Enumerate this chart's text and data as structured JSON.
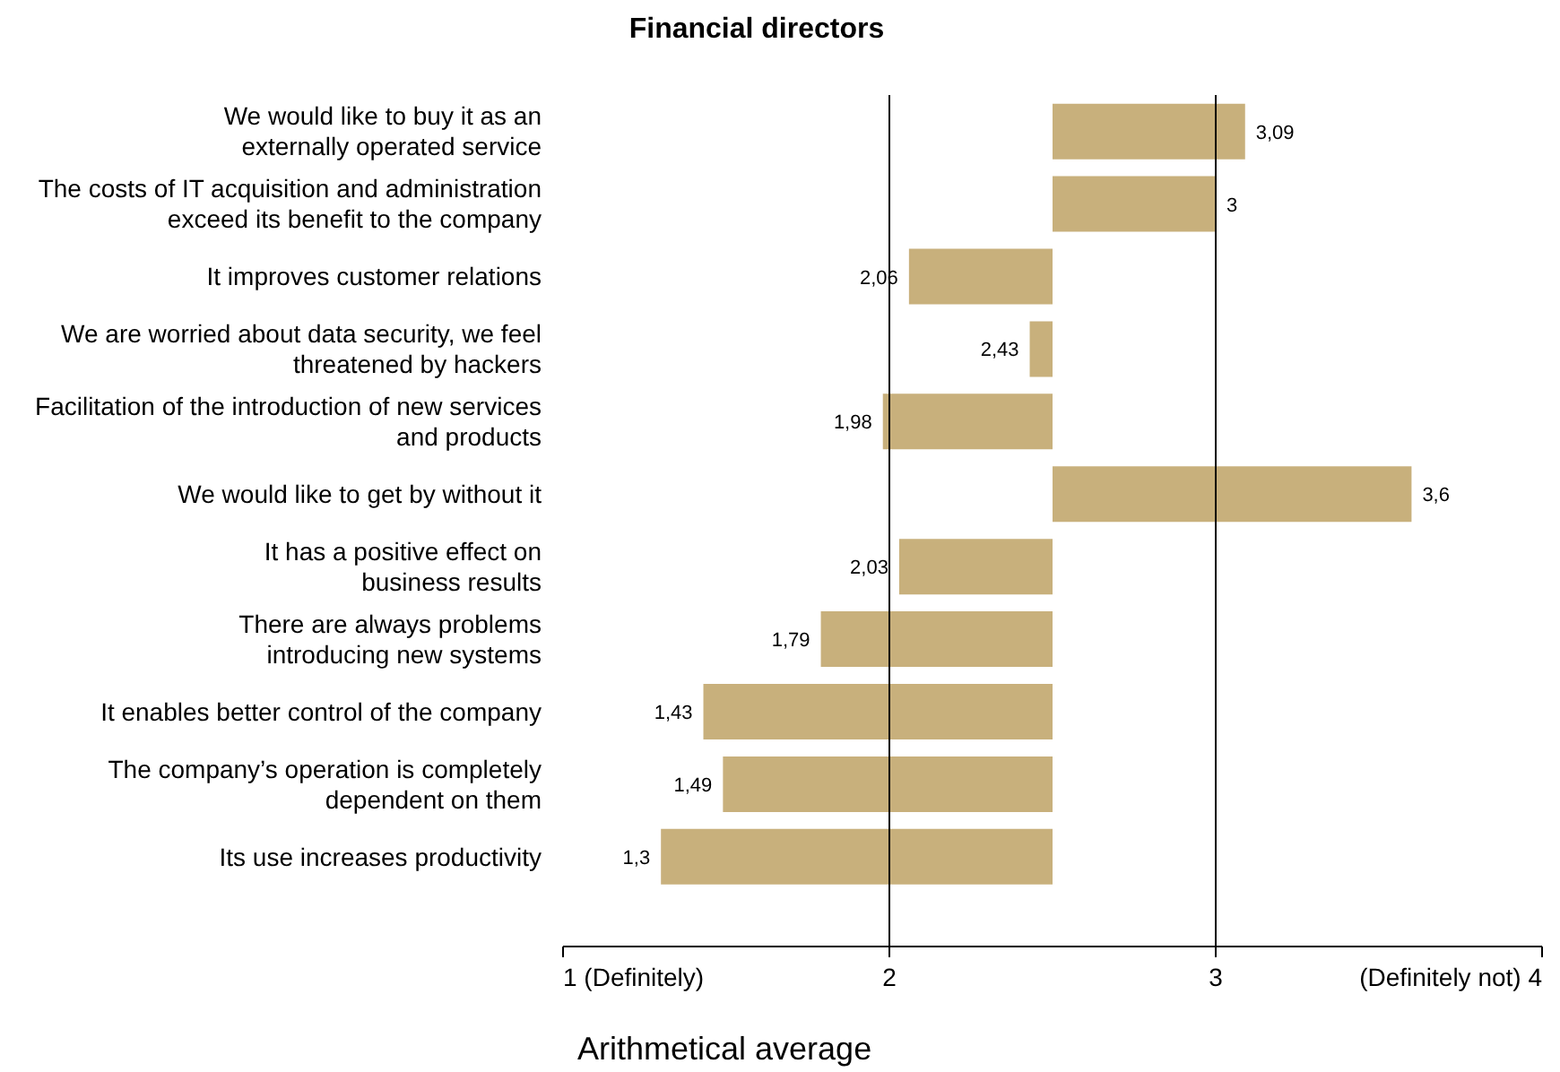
{
  "chart_data": {
    "type": "bar",
    "orientation": "horizontal",
    "title": "Financial directors",
    "xlabel": "Arithmetical average",
    "categories": [
      "We would like to buy it as an\nexternally operated service",
      "The costs of IT acquisition and administration\nexceed its benefit to the company",
      "It improves customer relations",
      "We are worried about data security, we feel\nthreatened by hackers",
      "Facilitation of the introduction of new services\nand products",
      "We would like to get by without it",
      "It has a positive effect on\nbusiness results",
      "There are always problems\nintroducing new systems",
      "It enables better control of the company",
      "The company’s operation is completely\ndependent on them",
      "Its use increases productivity"
    ],
    "base": [
      2.5,
      2.5,
      2.5,
      2.5,
      2.5,
      2.5,
      2.5,
      2.5,
      2.5,
      2.5,
      2.5
    ],
    "values": [
      0.59,
      0.5,
      -0.44,
      -0.07,
      -0.52,
      1.1,
      -0.47,
      -0.71,
      -1.07,
      -1.01,
      -1.2
    ],
    "value_labels": [
      "3,09",
      "3",
      "2,06",
      "2,43",
      "1,98",
      "3,6",
      "2,03",
      "1,79",
      "1,43",
      "1,49",
      "1,3"
    ],
    "color": "#c8b07c",
    "xlim": [
      1,
      4
    ],
    "xticks": [
      {
        "value": 1,
        "label": "1 (Definitely)"
      },
      2,
      3,
      {
        "value": 4,
        "label": "(Definitely not) 4"
      }
    ],
    "ref_lines": [
      {
        "axis": "x",
        "value": 2,
        "color": "#000000"
      },
      {
        "axis": "x",
        "value": 3,
        "color": "#000000"
      }
    ],
    "grid": false,
    "legend": false
  }
}
